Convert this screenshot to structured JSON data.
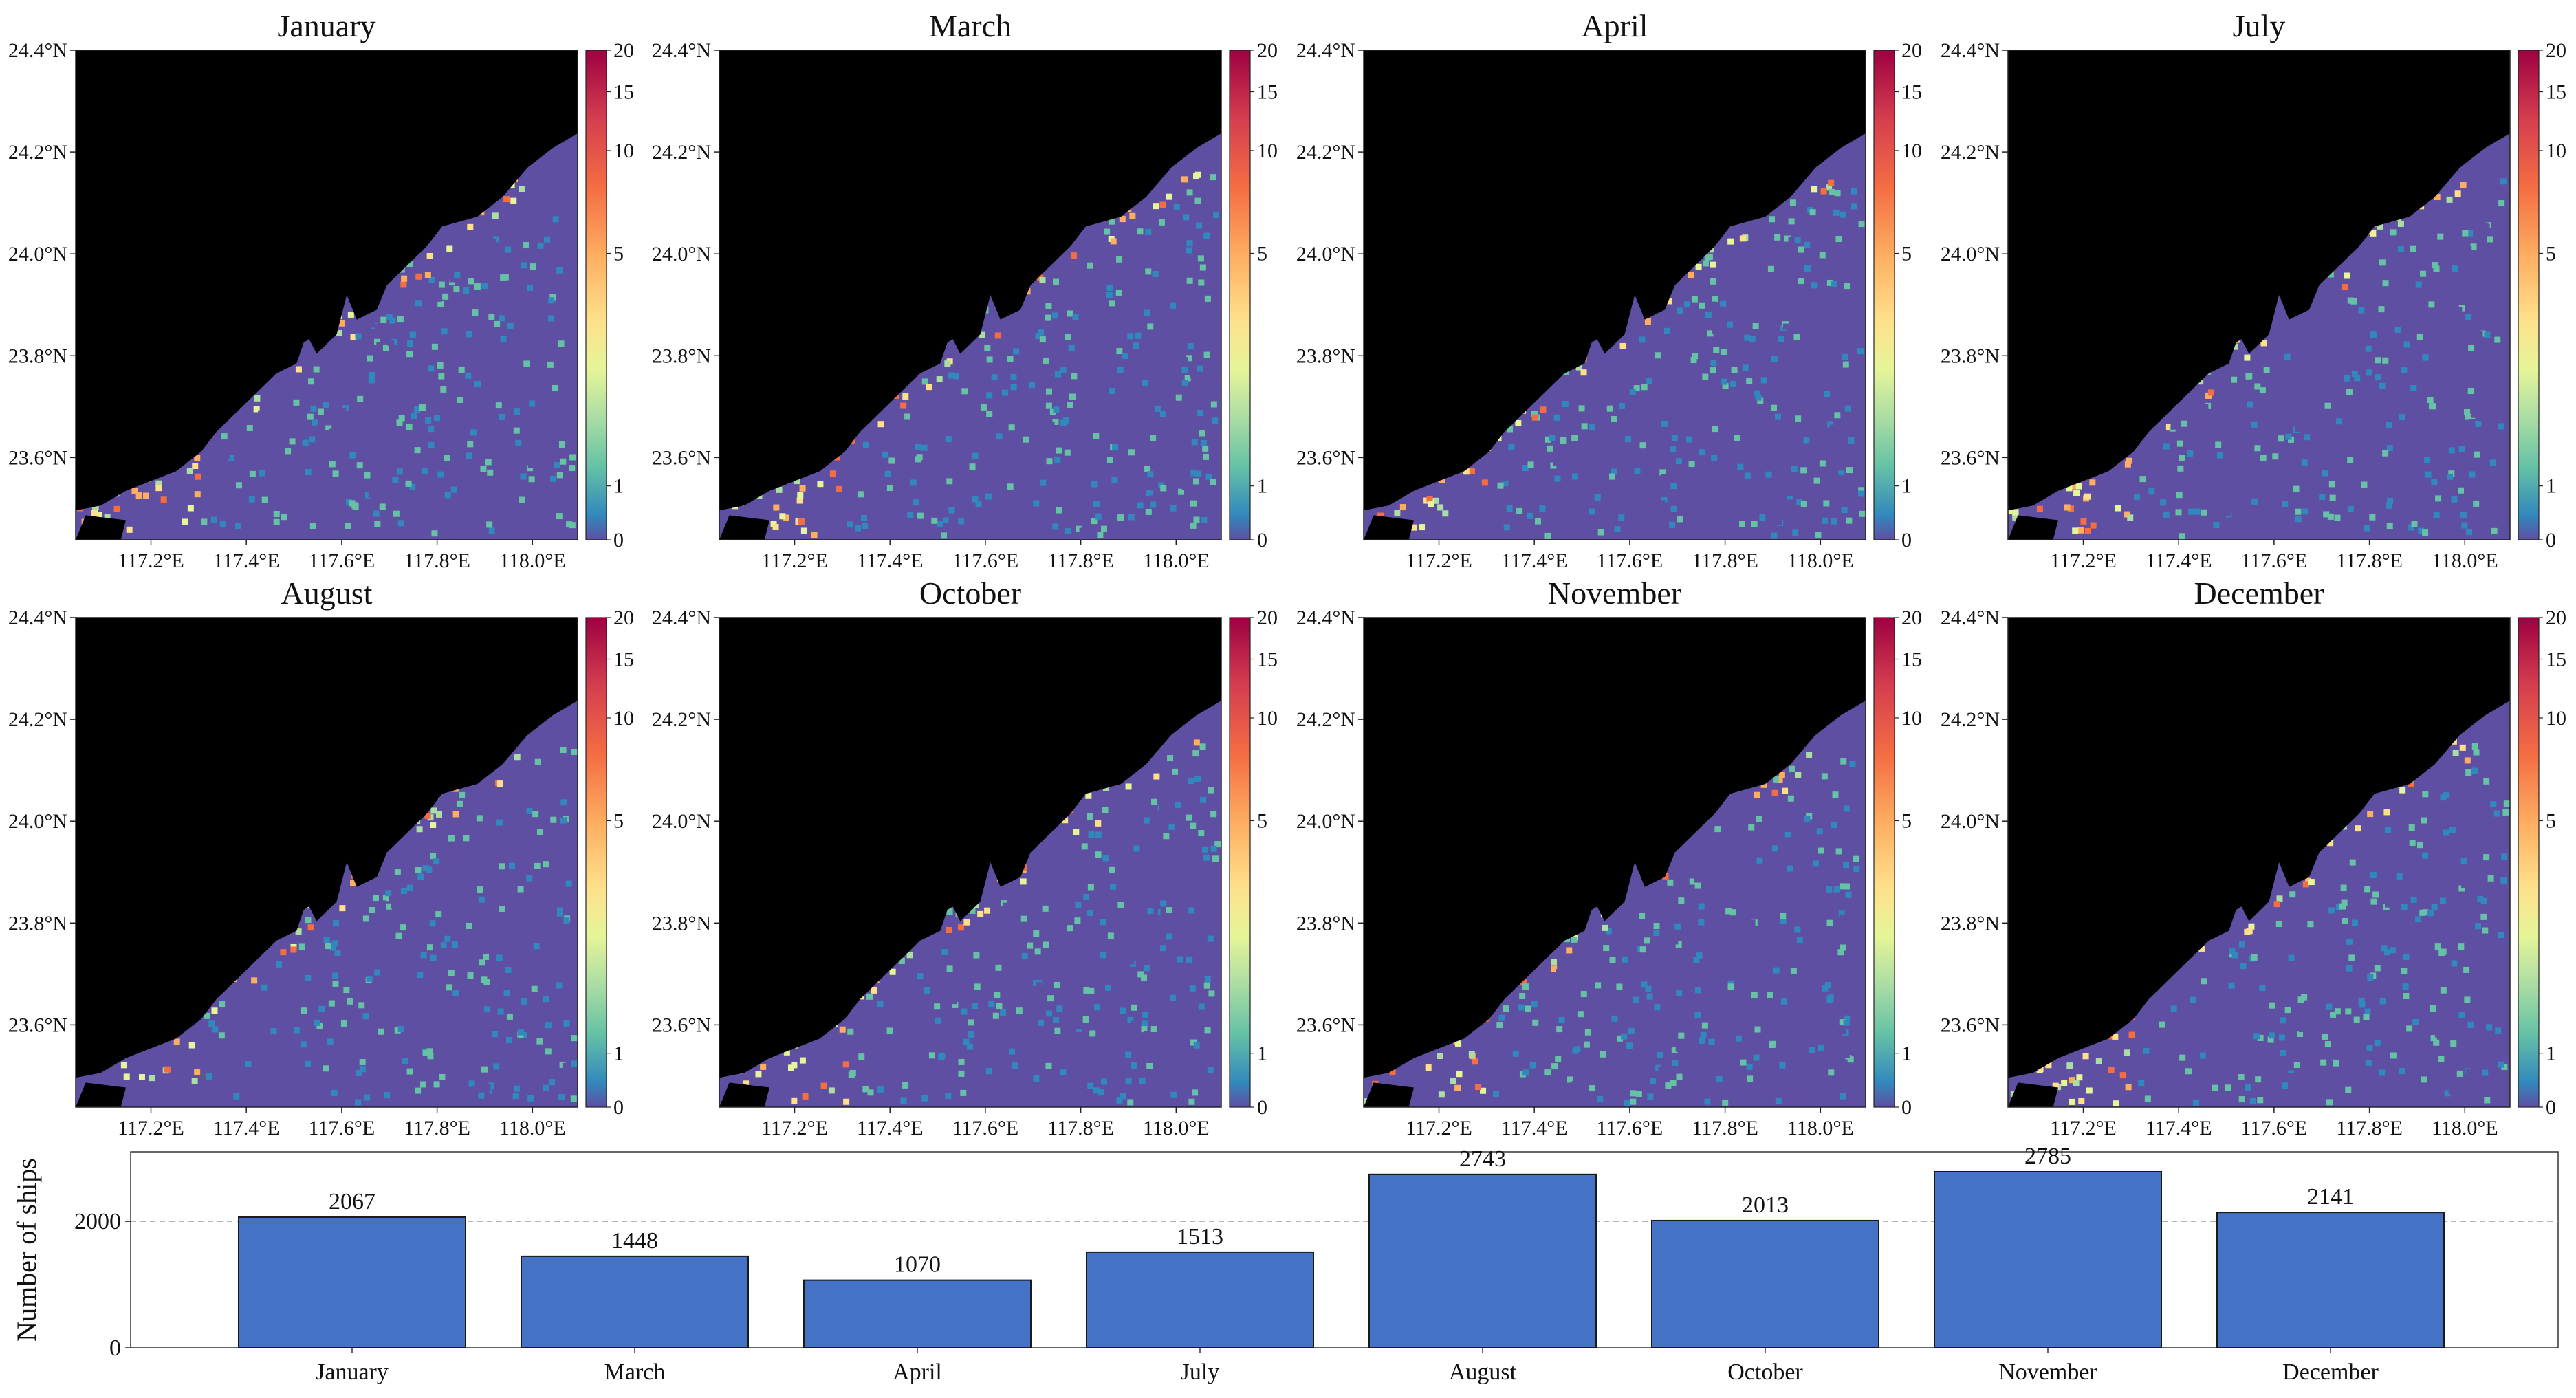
{
  "panels": [
    {
      "title": "January"
    },
    {
      "title": "March"
    },
    {
      "title": "April"
    },
    {
      "title": "July"
    },
    {
      "title": "August"
    },
    {
      "title": "October"
    },
    {
      "title": "November"
    },
    {
      "title": "December"
    }
  ],
  "map_axes": {
    "lat_ticks": [
      "24.4°N",
      "24.2°N",
      "24.0°N",
      "23.8°N",
      "23.6°N"
    ],
    "lon_ticks": [
      "117.2°E",
      "117.4°E",
      "117.6°E",
      "117.8°E",
      "118.0°E"
    ]
  },
  "colorbar": {
    "ticks": [
      "20",
      "15",
      "10",
      "5",
      "1",
      "0"
    ],
    "colormap": "Spectral_r",
    "colors": [
      "#5e4fa2",
      "#3288bd",
      "#66c2a5",
      "#abdda4",
      "#e6f598",
      "#fee08b",
      "#fdae61",
      "#f46d43",
      "#d53e4f",
      "#9e0142"
    ]
  },
  "colors": {
    "land": "#000000",
    "sea_background": "#5e4fa2",
    "bar_fill": "#4472c4",
    "bar_edge": "#1a1a1a"
  },
  "chart_data": [
    {
      "type": "heatmap",
      "description_of_panels": "8 monthly ship-density maps",
      "x_ticks": [
        "117.2°E",
        "117.4°E",
        "117.6°E",
        "117.8°E",
        "118.0°E"
      ],
      "y_ticks": [
        "24.4°N",
        "24.2°N",
        "24.0°N",
        "23.8°N",
        "23.6°N"
      ],
      "colorbar_range": [
        0,
        20
      ],
      "panels": [
        "January",
        "March",
        "April",
        "July",
        "August",
        "October",
        "November",
        "December"
      ]
    },
    {
      "type": "bar",
      "categories": [
        "January",
        "March",
        "April",
        "July",
        "August",
        "October",
        "November",
        "December"
      ],
      "values": [
        2067,
        1448,
        1070,
        1513,
        2743,
        2013,
        2785,
        2141
      ],
      "ylabel": "Number of ships",
      "y_ticks": [
        0,
        2000
      ],
      "ylim": [
        0,
        3100
      ],
      "grid": "horizontal dashed at 2000"
    }
  ]
}
